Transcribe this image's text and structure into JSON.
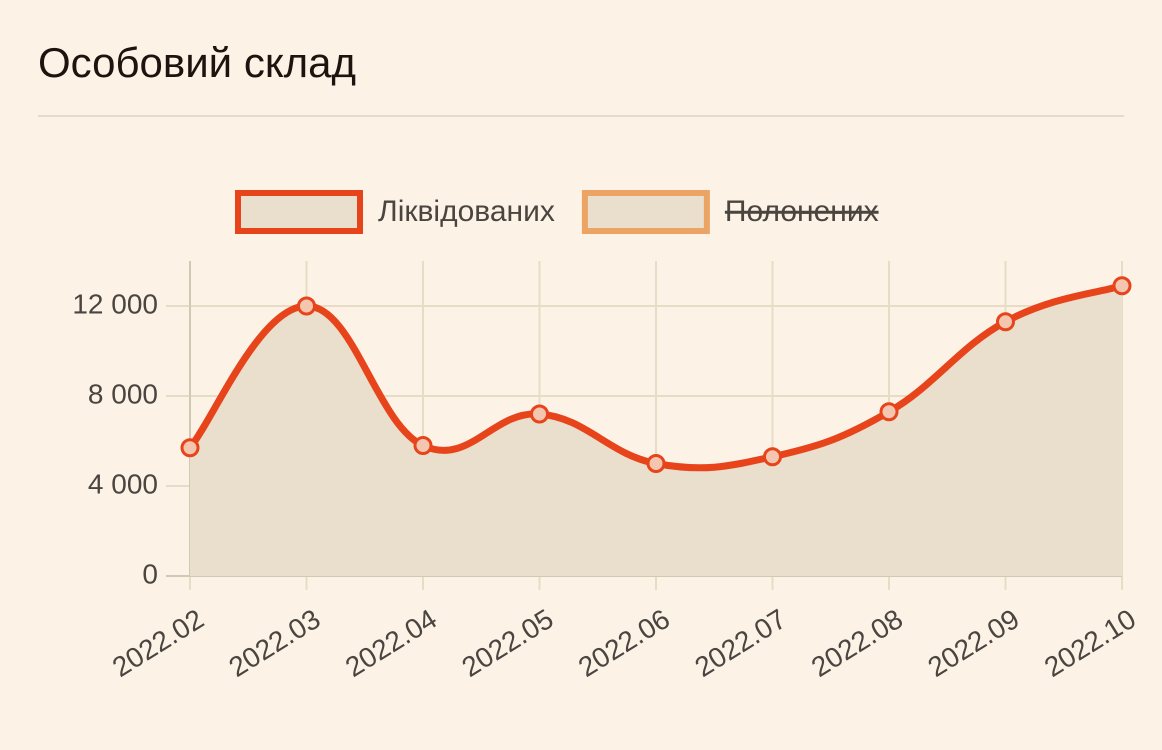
{
  "chart_data": {
    "type": "area",
    "title": "Особовий склад",
    "categories": [
      "2022.02",
      "2022.03",
      "2022.04",
      "2022.05",
      "2022.06",
      "2022.07",
      "2022.08",
      "2022.09",
      "2022.10"
    ],
    "series": [
      {
        "name": "Ліквідованих",
        "color": "#e8441c",
        "values": [
          5700,
          12000,
          5800,
          7200,
          5000,
          5300,
          7300,
          11300,
          12900
        ]
      },
      {
        "name": "Полонених",
        "color": "#eba464",
        "hidden": true
      }
    ],
    "ylim": [
      0,
      14000
    ],
    "yticks": [
      0,
      {
        "value": 4000,
        "label": "4 000"
      },
      {
        "value": 8000,
        "label": "8 000"
      },
      {
        "value": 12000,
        "label": "12 000"
      }
    ],
    "grid": true
  }
}
